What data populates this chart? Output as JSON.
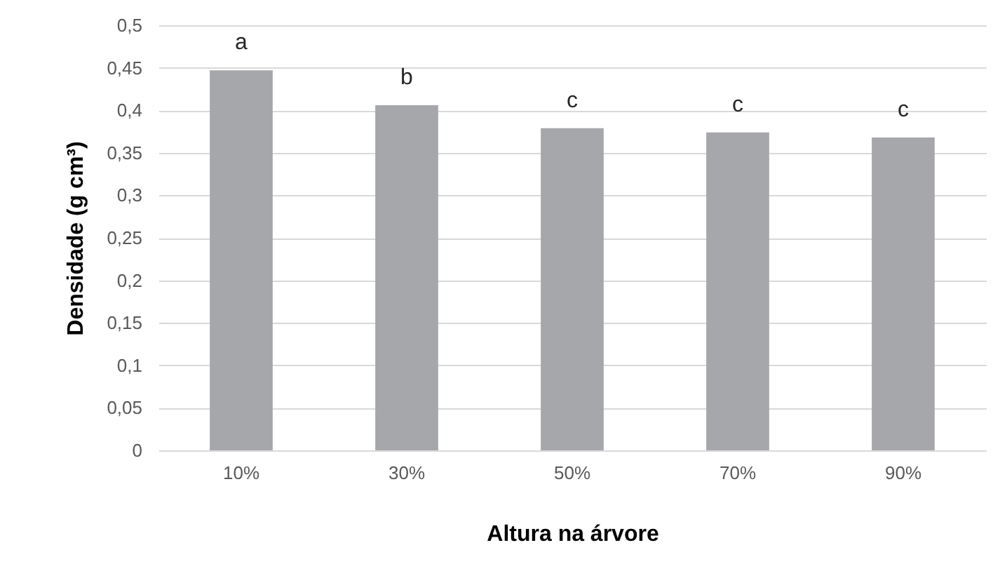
{
  "chart_data": {
    "type": "bar",
    "xlabel": "Altura na árvore",
    "ylabel": "Densidade (g cm³)",
    "categories": [
      "10%",
      "30%",
      "50%",
      "70%",
      "90%"
    ],
    "values": [
      0.447,
      0.406,
      0.379,
      0.374,
      0.368
    ],
    "color": "#a6a7aa",
    "ylim": [
      0,
      0.5
    ],
    "yticks": [
      {
        "value": 0,
        "label": "0"
      },
      {
        "value": 0.05,
        "label": "0,05"
      },
      {
        "value": 0.1,
        "label": "0,1"
      },
      {
        "value": 0.15,
        "label": "0,15"
      },
      {
        "value": 0.2,
        "label": "0,2"
      },
      {
        "value": 0.25,
        "label": "0,25"
      },
      {
        "value": 0.3,
        "label": "0,3"
      },
      {
        "value": 0.35,
        "label": "0,35"
      },
      {
        "value": 0.4,
        "label": "0,4"
      },
      {
        "value": 0.45,
        "label": "0,45"
      },
      {
        "value": 0.5,
        "label": "0,5"
      }
    ],
    "grid": "y",
    "annotations": [
      {
        "text": "a",
        "x": "10%",
        "y": 0.447
      },
      {
        "text": "b",
        "x": "30%",
        "y": 0.406
      },
      {
        "text": "c",
        "x": "50%",
        "y": 0.379
      },
      {
        "text": "c",
        "x": "70%",
        "y": 0.374
      },
      {
        "text": "c",
        "x": "90%",
        "y": 0.368
      }
    ]
  }
}
